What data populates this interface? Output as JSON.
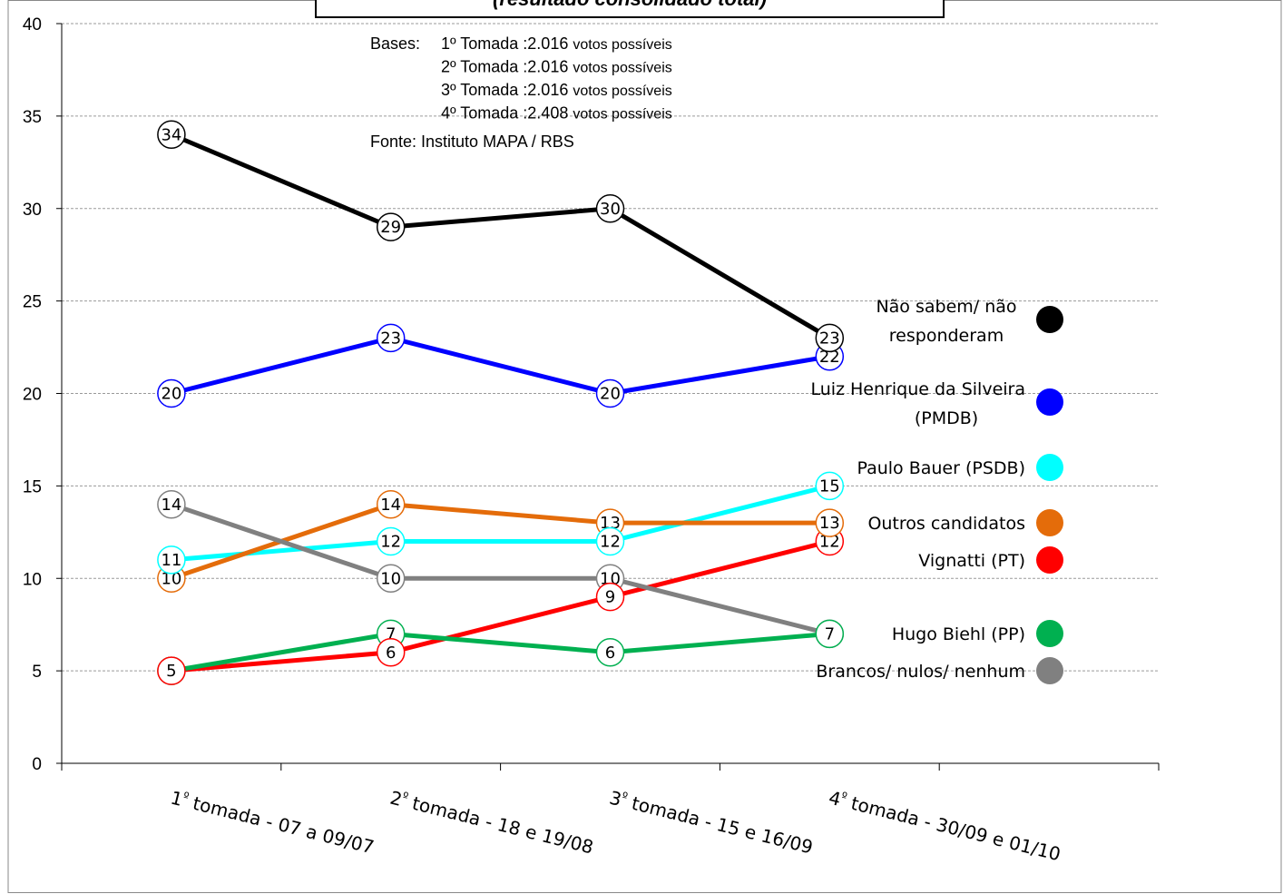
{
  "chart_data": {
    "type": "line",
    "title": "(resultado consolidado total)",
    "ylim": [
      0,
      40
    ],
    "y_ticks": [
      0,
      5,
      10,
      15,
      20,
      25,
      30,
      35,
      40
    ],
    "grid": true,
    "legend_position": "right",
    "categories": [
      "1º tomada - 07 a 09/07",
      "2º tomada - 18 e 19/08",
      "3º tomada - 15 e 16/09",
      "4º tomada - 30/09 e 01/10"
    ],
    "series": [
      {
        "name": "Não sabem/ não respondêram",
        "legend_lines": [
          "Não sabem/ não",
          "responderam"
        ],
        "color": "#000000",
        "values": [
          34,
          29,
          30,
          23
        ]
      },
      {
        "name": "Luiz Henrique da Silveira (PMDB)",
        "legend_lines": [
          "Luiz Henrique da Silveira",
          "(PMDB)"
        ],
        "color": "#0000FF",
        "values": [
          20,
          23,
          20,
          22
        ]
      },
      {
        "name": "Paulo Bauer (PSDB)",
        "legend_lines": [
          "Paulo Bauer (PSDB)"
        ],
        "color": "#00FFFF",
        "values": [
          11,
          12,
          12,
          15
        ]
      },
      {
        "name": "Outros candidatos",
        "legend_lines": [
          "Outros candidatos"
        ],
        "color": "#E46C0A",
        "values": [
          10,
          14,
          13,
          13
        ]
      },
      {
        "name": "Vignatti (PT)",
        "legend_lines": [
          "Vignatti (PT)"
        ],
        "color": "#FF0000",
        "values": [
          5,
          6,
          9,
          12
        ]
      },
      {
        "name": "Hugo Biehl (PP)",
        "legend_lines": [
          "Hugo Biehl (PP)"
        ],
        "color": "#00B050",
        "values": [
          5,
          7,
          6,
          7
        ]
      },
      {
        "name": "Brancos/ nulos/ nenhum",
        "legend_lines": [
          "Brancos/ nulos/ nenhum"
        ],
        "color": "#808080",
        "values": [
          14,
          10,
          10,
          7
        ]
      }
    ],
    "annotation": {
      "bases_label": "Bases:",
      "lines": [
        {
          "main": "1º Tomada :2.016",
          "small": "votos possíveis"
        },
        {
          "main": "2º Tomada :2.016",
          "small": "votos possíveis"
        },
        {
          "main": "3º Tomada :2.016",
          "small": "votos possíveis"
        },
        {
          "main": "4º Tomada :2.408",
          "small": "votos possíveis"
        }
      ],
      "source": "Fonte: Instituto MAPA / RBS"
    }
  }
}
